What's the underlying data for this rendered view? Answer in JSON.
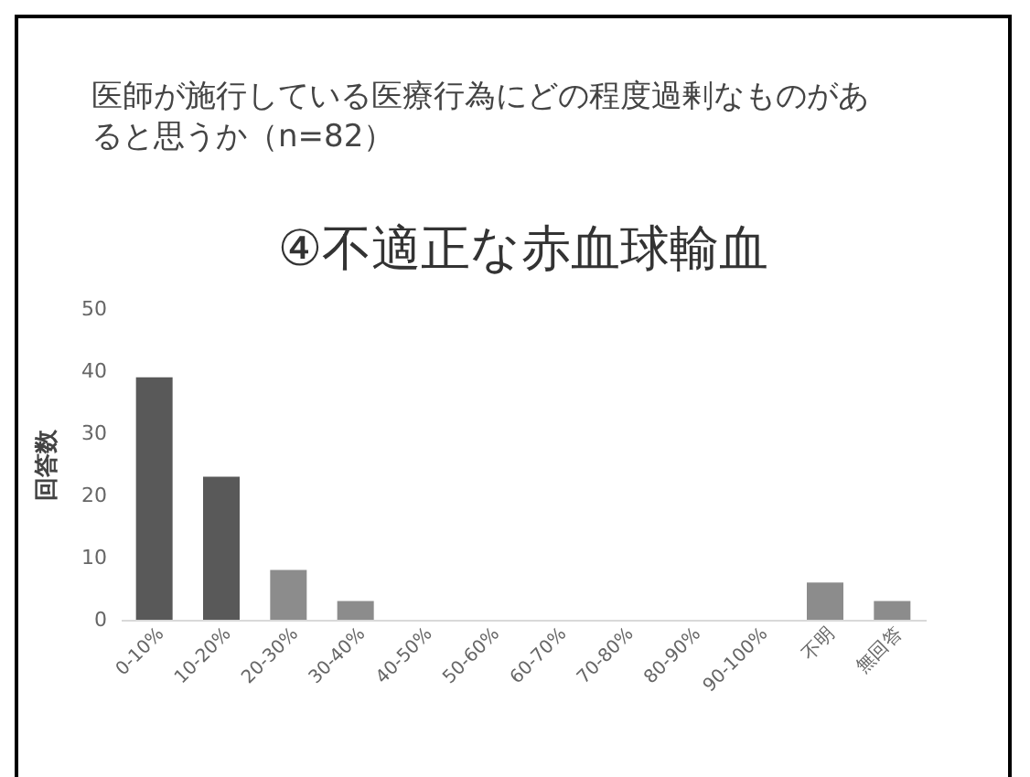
{
  "chart_data": {
    "type": "bar",
    "title": "医師が施行している医療行為にどの程度過剰なものがあると思うか（n=82）",
    "subtitle": "④不適正な赤血球輸血",
    "ylabel": "回答数",
    "categories": [
      "0-10%",
      "10-20%",
      "20-30%",
      "30-40%",
      "40-50%",
      "50-60%",
      "60-70%",
      "70-80%",
      "80-90%",
      "90-100%",
      "不明",
      "無回答"
    ],
    "values": [
      39,
      23,
      8,
      3,
      0,
      0,
      0,
      0,
      0,
      0,
      6,
      3
    ],
    "colors": [
      "#595959",
      "#595959",
      "#8c8c8c",
      "#8c8c8c",
      "#8c8c8c",
      "#8c8c8c",
      "#8c8c8c",
      "#8c8c8c",
      "#8c8c8c",
      "#8c8c8c",
      "#8c8c8c",
      "#8c8c8c"
    ],
    "ylim": [
      0,
      50
    ],
    "yticks": [
      0,
      10,
      20,
      30,
      40,
      50
    ],
    "grid": false
  }
}
